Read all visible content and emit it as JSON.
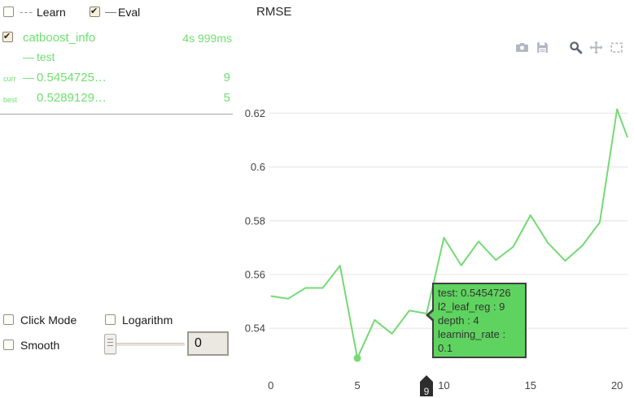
{
  "icons": {
    "check": "✔"
  },
  "colors": {
    "accent_green": "#6fe06f",
    "line_green": "#74da74",
    "tooltip_bg": "#5fd35f",
    "grid_gray": "#e9e9e9",
    "tick_text": "#444444",
    "modebar_inactive": "#b2b6c2",
    "modebar_active": "#5e6373",
    "axis_tag_bg": "#2d2d2d"
  },
  "sidebar": {
    "learn_toggle": {
      "dash": "---",
      "label": "Learn",
      "checked": false
    },
    "eval_toggle": {
      "dash": "—",
      "label": "Eval",
      "checked": true
    },
    "run": {
      "name": "catboost_info",
      "time": "4s 999ms",
      "checked": true
    },
    "series_row": {
      "dash": "—",
      "label": "test"
    },
    "curr_row": {
      "label": "curr",
      "dash": "—",
      "value": "0.5454725…",
      "iteration": "9"
    },
    "best_row": {
      "label": "best",
      "value": "0.5289129…",
      "iteration": "5"
    },
    "controls": {
      "click_mode_label": "Click Mode",
      "logarithm_label": "Logarithm",
      "smooth_label": "Smooth",
      "smooth_value": "0"
    }
  },
  "chart": {
    "title": "RMSE",
    "toolbar_icons": [
      "camera-icon",
      "save-icon",
      "zoom-icon",
      "pan-icon",
      "box-select-icon"
    ]
  },
  "chart_data": {
    "type": "line",
    "title": "RMSE",
    "xlabel": "",
    "ylabel": "",
    "grid": "horizontal-only",
    "legend": "none",
    "xlim": [
      -0.1,
      20.7
    ],
    "ylim": [
      0.525,
      0.64
    ],
    "series": [
      {
        "name": "catboost_info — test",
        "color": "#74da74",
        "x": [
          0,
          1,
          2,
          3,
          4,
          5,
          6,
          7,
          8,
          9,
          10,
          11,
          12,
          13,
          14,
          15,
          16,
          17,
          18,
          19,
          20
        ],
        "values": [
          0.552,
          0.551,
          0.555,
          0.555,
          0.5633,
          0.5289,
          0.5431,
          0.538,
          0.5466,
          0.5455,
          0.5737,
          0.5634,
          0.5723,
          0.5654,
          0.5703,
          0.5821,
          0.5718,
          0.5651,
          0.5708,
          0.5794,
          0.6215
        ]
      }
    ],
    "partial_end_point": {
      "x": 20.6,
      "value": 0.611
    },
    "best_point": {
      "x": 5,
      "value": 0.5289,
      "marker": "dot"
    },
    "current_point": {
      "x": 9,
      "value": 0.5454726
    },
    "xticks": [
      {
        "v": 0,
        "label": "0"
      },
      {
        "v": 5,
        "label": "5"
      },
      {
        "v": 10,
        "label": "10"
      },
      {
        "v": 15,
        "label": "15"
      },
      {
        "v": 20,
        "label": "20"
      }
    ],
    "yticks": [
      {
        "v": 0.54,
        "label": "0.54"
      },
      {
        "v": 0.56,
        "label": "0.56"
      },
      {
        "v": 0.58,
        "label": "0.58"
      },
      {
        "v": 0.6,
        "label": "0.6"
      },
      {
        "v": 0.62,
        "label": "0.62"
      }
    ],
    "tooltip": {
      "lines": [
        "test: 0.5454726",
        "l2_leaf_reg : 9",
        "depth : 4",
        "learning_rate : 0.1"
      ]
    },
    "x_axis_hover_tag": "9"
  }
}
